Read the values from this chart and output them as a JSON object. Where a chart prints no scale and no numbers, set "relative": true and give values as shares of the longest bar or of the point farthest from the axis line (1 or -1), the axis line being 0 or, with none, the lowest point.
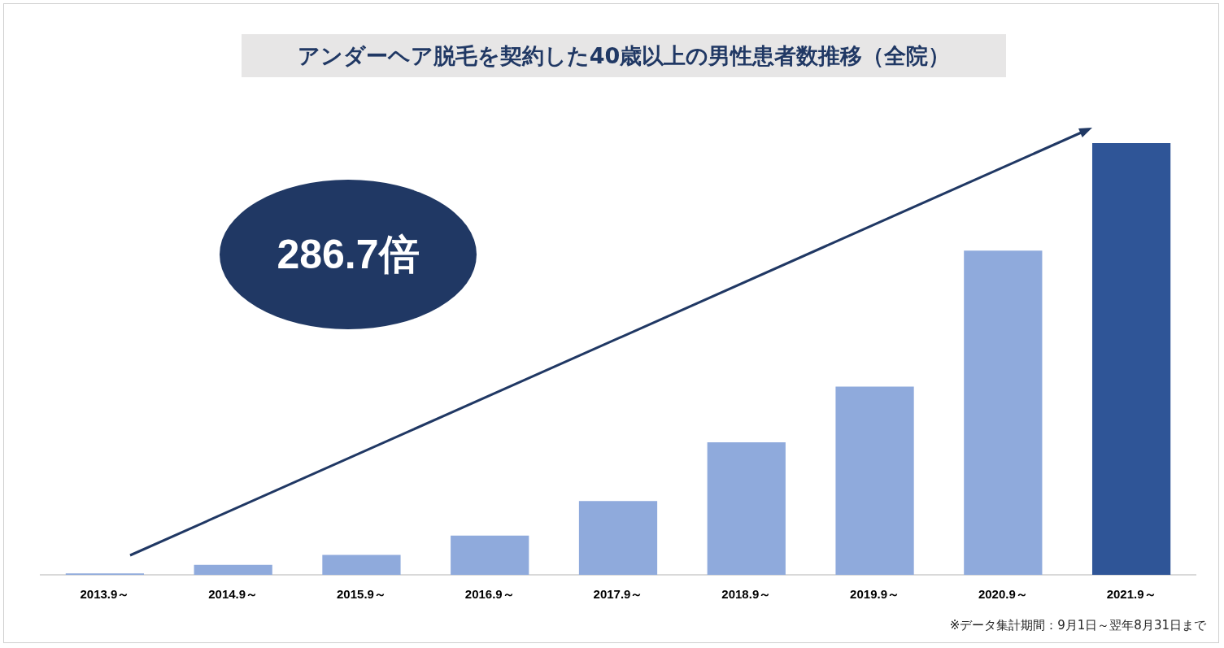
{
  "chart_data": {
    "type": "bar",
    "title": "アンダーヘア脱毛を契約した40歳以上の男性患者数推移（全院）",
    "categories": [
      "2013.9～",
      "2014.9～",
      "2015.9～",
      "2016.9～",
      "2017.9～",
      "2018.9～",
      "2019.9～",
      "2020.9～",
      "2021.9～"
    ],
    "values": [
      0.0035,
      0.023,
      0.046,
      0.091,
      0.171,
      0.307,
      0.436,
      0.751,
      1
    ],
    "colors": [
      "#8faadc",
      "#8faadc",
      "#8faadc",
      "#8faadc",
      "#8faadc",
      "#8faadc",
      "#8faadc",
      "#8faadc",
      "#2f5597"
    ],
    "relative": true,
    "grid": false,
    "annotations": [
      "286.7倍",
      "※データ集計期間：9月1日～翌年8月31日まで"
    ]
  }
}
